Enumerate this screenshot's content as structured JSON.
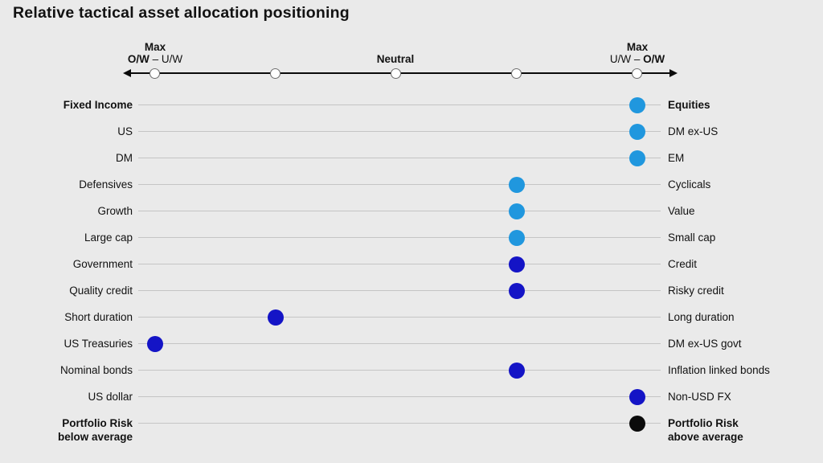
{
  "title": "Relative tactical asset allocation positioning",
  "colors": {
    "background": "#eaeaea",
    "light_blue": "#2097DE",
    "dark_blue": "#1414C6",
    "black": "#0b0b0b",
    "row_line": "#c5c5c5",
    "axis_line": "#0a0a0a"
  },
  "axis": {
    "left_label": {
      "top": "Max",
      "bold": "O/W",
      "rest": " – U/W"
    },
    "center_label": "Neutral",
    "right_label": {
      "top": "Max",
      "rest": "U/W – ",
      "bold": "O/W"
    },
    "tick_values": [
      -2,
      -1,
      0,
      1,
      2
    ]
  },
  "chart_data": {
    "type": "scatter",
    "title": "Relative tactical asset allocation positioning",
    "x_axis": {
      "min": -2,
      "max": 2,
      "left_end_label": "Max O/W – U/W",
      "center_label": "Neutral",
      "right_end_label": "Max U/W – O/W"
    },
    "legend_position": "none",
    "grid": "horizontal row lines",
    "rows": [
      {
        "left": "Fixed Income",
        "right": "Equities",
        "value": 2,
        "color": "light_blue",
        "bold": true
      },
      {
        "left": "US",
        "right": "DM ex-US",
        "value": 2,
        "color": "light_blue",
        "bold": false
      },
      {
        "left": "DM",
        "right": "EM",
        "value": 2,
        "color": "light_blue",
        "bold": false
      },
      {
        "left": "Defensives",
        "right": "Cyclicals",
        "value": 1,
        "color": "light_blue",
        "bold": false
      },
      {
        "left": "Growth",
        "right": "Value",
        "value": 1,
        "color": "light_blue",
        "bold": false
      },
      {
        "left": "Large cap",
        "right": "Small cap",
        "value": 1,
        "color": "light_blue",
        "bold": false
      },
      {
        "left": "Government",
        "right": "Credit",
        "value": 1,
        "color": "dark_blue",
        "bold": false
      },
      {
        "left": "Quality credit",
        "right": "Risky credit",
        "value": 1,
        "color": "dark_blue",
        "bold": false
      },
      {
        "left": "Short duration",
        "right": "Long duration",
        "value": -1,
        "color": "dark_blue",
        "bold": false
      },
      {
        "left": "US Treasuries",
        "right": "DM ex-US govt",
        "value": -2,
        "color": "dark_blue",
        "bold": false
      },
      {
        "left": "Nominal bonds",
        "right": "Inflation linked bonds",
        "value": 1,
        "color": "dark_blue",
        "bold": false
      },
      {
        "left": "US dollar",
        "right": "Non-USD FX",
        "value": 2,
        "color": "dark_blue",
        "bold": false
      },
      {
        "left": "Portfolio Risk",
        "left2": "below average",
        "right": "Portfolio Risk",
        "right2": "above average",
        "value": 2,
        "color": "black",
        "bold": true
      }
    ]
  }
}
